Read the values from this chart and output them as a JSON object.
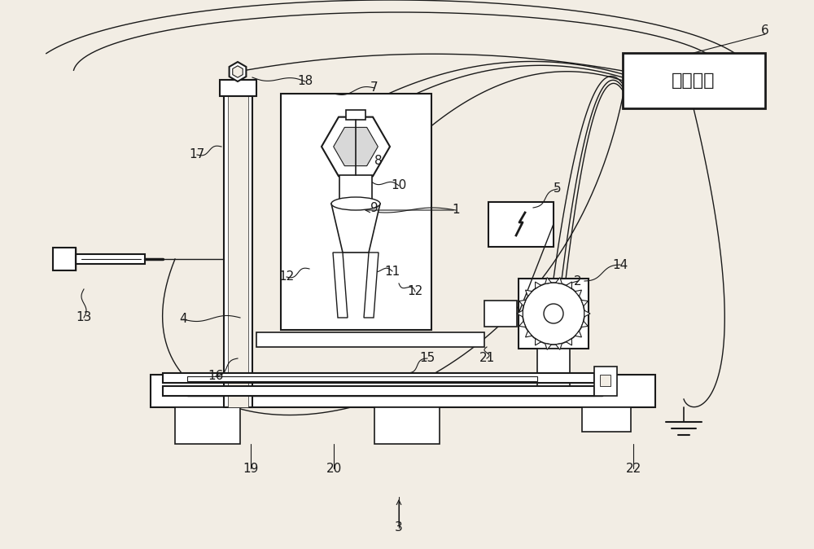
{
  "bg_color": "#f2ede4",
  "line_color": "#1a1a1a",
  "label_color": "#1a1a1a",
  "fig_width": 10.0,
  "fig_height": 6.74,
  "control_label": "控制单元"
}
